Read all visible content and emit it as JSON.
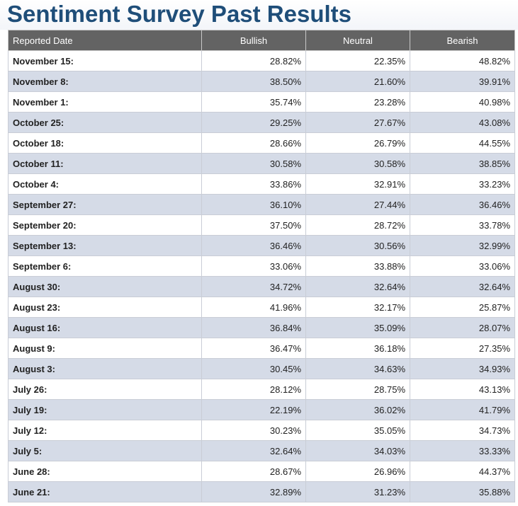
{
  "title": "Sentiment Survey Past Results",
  "colors": {
    "title": "#1f4e79",
    "header_bg": "#636363",
    "row_alt_bg": "#d5dbe7"
  },
  "table": {
    "headers": [
      "Reported Date",
      "Bullish",
      "Neutral",
      "Bearish"
    ],
    "rows": [
      {
        "date": "November 15:",
        "bullish": "28.82%",
        "neutral": "22.35%",
        "bearish": "48.82%"
      },
      {
        "date": "November 8:",
        "bullish": "38.50%",
        "neutral": "21.60%",
        "bearish": "39.91%"
      },
      {
        "date": "November 1:",
        "bullish": "35.74%",
        "neutral": "23.28%",
        "bearish": "40.98%"
      },
      {
        "date": "October 25:",
        "bullish": "29.25%",
        "neutral": "27.67%",
        "bearish": "43.08%"
      },
      {
        "date": "October 18:",
        "bullish": "28.66%",
        "neutral": "26.79%",
        "bearish": "44.55%"
      },
      {
        "date": "October 11:",
        "bullish": "30.58%",
        "neutral": "30.58%",
        "bearish": "38.85%"
      },
      {
        "date": "October 4:",
        "bullish": "33.86%",
        "neutral": "32.91%",
        "bearish": "33.23%"
      },
      {
        "date": "September 27:",
        "bullish": "36.10%",
        "neutral": "27.44%",
        "bearish": "36.46%"
      },
      {
        "date": "September 20:",
        "bullish": "37.50%",
        "neutral": "28.72%",
        "bearish": "33.78%"
      },
      {
        "date": "September 13:",
        "bullish": "36.46%",
        "neutral": "30.56%",
        "bearish": "32.99%"
      },
      {
        "date": "September 6:",
        "bullish": "33.06%",
        "neutral": "33.88%",
        "bearish": "33.06%"
      },
      {
        "date": "August 30:",
        "bullish": "34.72%",
        "neutral": "32.64%",
        "bearish": "32.64%"
      },
      {
        "date": "August 23:",
        "bullish": "41.96%",
        "neutral": "32.17%",
        "bearish": "25.87%"
      },
      {
        "date": "August 16:",
        "bullish": "36.84%",
        "neutral": "35.09%",
        "bearish": "28.07%"
      },
      {
        "date": "August 9:",
        "bullish": "36.47%",
        "neutral": "36.18%",
        "bearish": "27.35%"
      },
      {
        "date": "August 3:",
        "bullish": "30.45%",
        "neutral": "34.63%",
        "bearish": "34.93%"
      },
      {
        "date": "July 26:",
        "bullish": "28.12%",
        "neutral": "28.75%",
        "bearish": "43.13%"
      },
      {
        "date": "July 19:",
        "bullish": "22.19%",
        "neutral": "36.02%",
        "bearish": "41.79%"
      },
      {
        "date": "July 12:",
        "bullish": "30.23%",
        "neutral": "35.05%",
        "bearish": "34.73%"
      },
      {
        "date": "July 5:",
        "bullish": "32.64%",
        "neutral": "34.03%",
        "bearish": "33.33%"
      },
      {
        "date": "June 28:",
        "bullish": "28.67%",
        "neutral": "26.96%",
        "bearish": "44.37%"
      },
      {
        "date": "June 21:",
        "bullish": "32.89%",
        "neutral": "31.23%",
        "bearish": "35.88%"
      }
    ]
  }
}
